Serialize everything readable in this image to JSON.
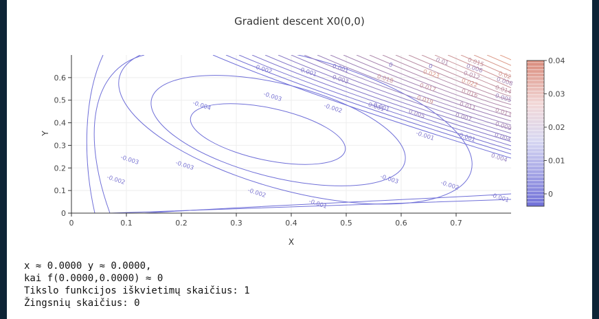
{
  "chart_data": {
    "type": "contour",
    "title": "Gradient descent X0(0,0)",
    "xlabel": "X",
    "ylabel": "Y",
    "xlim": [
      0,
      0.8
    ],
    "ylim": [
      0,
      0.7
    ],
    "x_ticks": [
      "0",
      "0.1",
      "0.2",
      "0.3",
      "0.4",
      "0.5",
      "0.6",
      "0.7"
    ],
    "y_ticks": [
      "0",
      "0.1",
      "0.2",
      "0.3",
      "0.4",
      "0.5",
      "0.6"
    ],
    "colorbar": {
      "range": [
        -0.005,
        0.04
      ],
      "ticks": [
        "0",
        "0.01",
        "0.02",
        "0.03",
        "0.04"
      ],
      "low_color": "#6f6fd8",
      "high_color": "#e7a084"
    },
    "grid": true,
    "contour_labels": [
      "-0.004",
      "-0.003",
      "-0.003",
      "-0.003",
      "-0.003",
      "-0.002",
      "-0.002",
      "-0.002",
      "-0.002",
      "-0.002",
      "-0.001",
      "-0.001",
      "-0.001",
      "-0.001",
      "-0.001",
      "-0.001",
      "0.001",
      "0.001",
      "0.004",
      "0",
      "0",
      "0.01",
      "0.015",
      "0.018",
      "0.023",
      "0.006",
      "0.012",
      "0.02",
      "0.017",
      "0.022",
      "0.008",
      "0.014",
      "0.019",
      "0.016",
      "0.005",
      "0.011",
      "0.013",
      "0.007",
      "0.009",
      "0.004",
      "0.005",
      "0.003"
    ]
  },
  "output": {
    "line1": "x ≈ 0.0000 y ≈ 0.0000,",
    "line2": "kai f(0.0000,0.0000) ≈ 0",
    "line3": "Tikslo funkcijos iškvietimų skaičius: 1",
    "line4": "Žingsnių skaičius: 0"
  }
}
